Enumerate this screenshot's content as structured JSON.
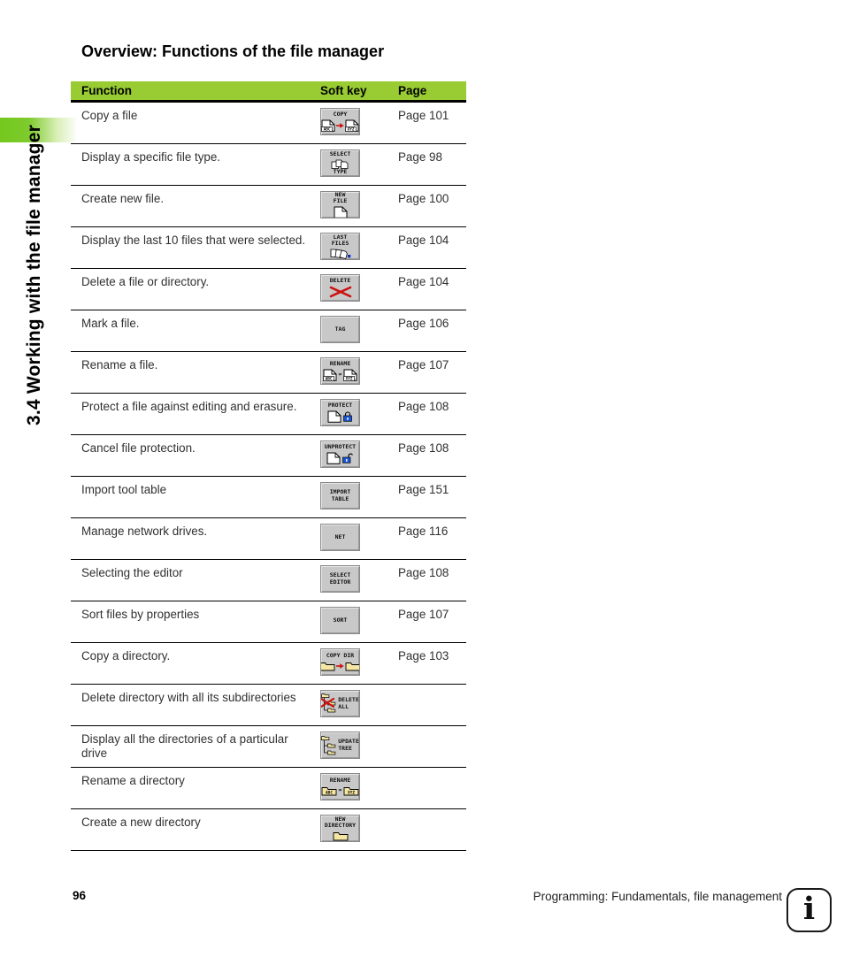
{
  "page": {
    "sidebar_title": "3.4 Working with the file manager",
    "title": "Overview: Functions of the file manager",
    "footer": {
      "page_number": "96",
      "footer_text": "Programming: Fundamentals, file management",
      "info_glyph": "i"
    }
  },
  "colors": {
    "header_green": "#99cc33",
    "sidebar_green": "#74c81e",
    "softkey_gray": "#c8c8c8",
    "red": "#cc1111",
    "lock_blue": "#1856d6",
    "folder_yellow": "#f5e6a3",
    "recent_blue": "#1133bb"
  },
  "table": {
    "headers": [
      "Function",
      "Soft key",
      "Page"
    ],
    "rows": [
      {
        "function": "Copy a file",
        "page": "Page 101",
        "softkey": {
          "icon": "copy-file-icon",
          "lines": [
            "COPY"
          ],
          "pair": [
            "ABC",
            "XYZ"
          ],
          "connector": "arrow"
        }
      },
      {
        "function": "Display a specific file type.",
        "page": "Page 98",
        "softkey": {
          "icon": "select-type-icon",
          "lines": [
            "SELECT",
            "TYPE"
          ]
        }
      },
      {
        "function": "Create new file.",
        "page": "Page 100",
        "softkey": {
          "icon": "new-file-icon",
          "lines": [
            "NEW",
            "FILE"
          ]
        }
      },
      {
        "function": "Display the last 10 files that were selected.",
        "page": "Page 104",
        "softkey": {
          "icon": "last-files-icon",
          "lines": [
            "LAST",
            "FILES"
          ]
        }
      },
      {
        "function": "Delete a file or directory.",
        "page": "Page 104",
        "softkey": {
          "icon": "delete-icon",
          "lines": [
            "DELETE"
          ]
        }
      },
      {
        "function": "Mark a file.",
        "page": "Page 106",
        "softkey": {
          "icon": "tag-icon",
          "lines": [
            "TAG"
          ]
        }
      },
      {
        "function": "Rename a file.",
        "page": "Page 107",
        "softkey": {
          "icon": "rename-file-icon",
          "lines": [
            "RENAME"
          ],
          "pair": [
            "ABC",
            "XYZ"
          ],
          "connector": "equals"
        }
      },
      {
        "function": "Protect a file against editing and erasure.",
        "page": "Page 108",
        "softkey": {
          "icon": "protect-icon",
          "lines": [
            "PROTECT"
          ]
        }
      },
      {
        "function": "Cancel file protection.",
        "page": "Page 108",
        "softkey": {
          "icon": "unprotect-icon",
          "lines": [
            "UNPROTECT"
          ]
        }
      },
      {
        "function": "Import tool table",
        "page": "Page 151",
        "softkey": {
          "icon": "text-only",
          "lines": [
            "IMPORT",
            "TABLE"
          ]
        }
      },
      {
        "function": "Manage network drives.",
        "page": "Page 116",
        "softkey": {
          "icon": "text-only",
          "lines": [
            "NET"
          ]
        }
      },
      {
        "function": "Selecting the editor",
        "page": "Page 108",
        "softkey": {
          "icon": "text-only",
          "lines": [
            "SELECT",
            "EDITOR"
          ]
        }
      },
      {
        "function": "Sort files by properties",
        "page": "Page 107",
        "softkey": {
          "icon": "text-only",
          "lines": [
            "SORT"
          ]
        }
      },
      {
        "function": "Copy a directory.",
        "page": "Page 103",
        "softkey": {
          "icon": "copy-dir-icon",
          "lines": [
            "COPY DIR"
          ]
        }
      },
      {
        "function": "Delete directory with all its subdirectories",
        "page": "",
        "softkey": {
          "icon": "delete-all-icon",
          "lines": [
            "DELETE",
            "ALL"
          ]
        }
      },
      {
        "function": "Display all the directories of a particular drive",
        "page": "",
        "softkey": {
          "icon": "update-tree-icon",
          "lines": [
            "UPDATE",
            "TREE"
          ]
        }
      },
      {
        "function": "Rename a directory",
        "page": "",
        "softkey": {
          "icon": "rename-dir-icon",
          "lines": [
            "RENAME"
          ],
          "pair": [
            "ABC",
            "XYZ"
          ],
          "connector": "equals"
        }
      },
      {
        "function": "Create a new directory",
        "page": "",
        "softkey": {
          "icon": "new-directory-icon",
          "lines": [
            "NEW",
            "DIRECTORY"
          ]
        }
      }
    ]
  }
}
